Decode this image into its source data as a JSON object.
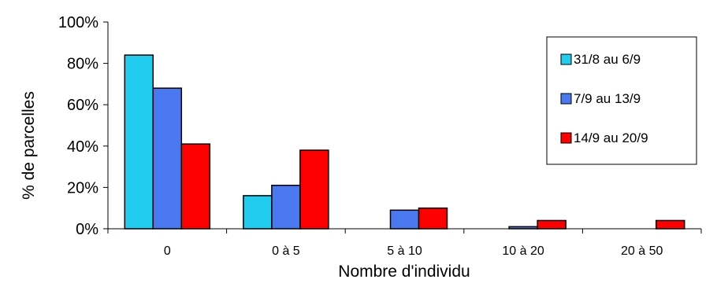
{
  "chart_data": {
    "type": "bar",
    "title": "",
    "xlabel": "Nombre d'individu",
    "ylabel": "% de parcelles",
    "categories": [
      "0",
      "0 à 5",
      "5 à 10",
      "10 à 20",
      "20 à 50"
    ],
    "series": [
      {
        "name": "31/8 au 6/9",
        "color": "#22CCEE",
        "values": [
          84,
          16,
          0,
          0,
          0
        ]
      },
      {
        "name": "7/9 au 13/9",
        "color": "#4A78F0",
        "values": [
          68,
          21,
          9,
          1,
          0
        ]
      },
      {
        "name": "14/9 au 20/9",
        "color": "#FF0000",
        "values": [
          41,
          38,
          10,
          4,
          4
        ]
      }
    ],
    "ylim": [
      0,
      100
    ],
    "yticks": [
      0,
      20,
      40,
      60,
      80,
      100
    ],
    "ytick_labels": [
      "0%",
      "20%",
      "40%",
      "60%",
      "80%",
      "100%"
    ],
    "legend_position": "right",
    "grid": false
  }
}
